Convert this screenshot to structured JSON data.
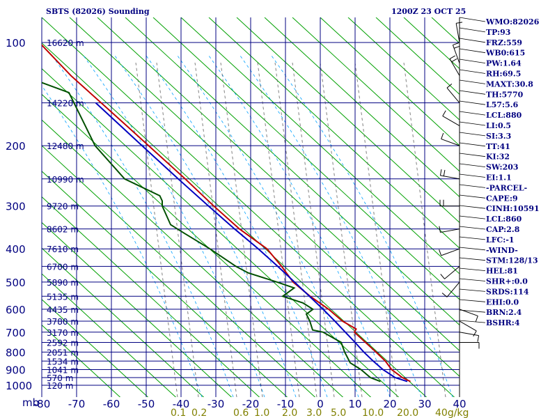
{
  "chart_data": {
    "type": "skew-t sounding",
    "title_left": "SBTS (82026) Sounding",
    "title_right": "1200Z 23 OCT 25",
    "pressure_axis_label": "mb",
    "temperature_unit": "C",
    "mixing_ratio_unit": "g/kg",
    "pressure_levels": [
      100,
      200,
      300,
      400,
      500,
      600,
      700,
      800,
      900,
      1000
    ],
    "temperature_ticks": [
      -80,
      -70,
      -60,
      -50,
      -40,
      -30,
      -20,
      -10,
      0,
      10,
      20,
      30,
      40
    ],
    "temperature_tick_labels": [
      "-80",
      "-70",
      "-60",
      "-50",
      "-40",
      "-30",
      "-20",
      "-10",
      "0",
      "10",
      "20",
      "30",
      "40"
    ],
    "mixing_ratio_labels": [
      {
        "value": 0.1,
        "label": "0.1"
      },
      {
        "value": 0.2,
        "label": "0.2"
      },
      {
        "value": 0.6,
        "label": "0.6"
      },
      {
        "value": 1.0,
        "label": "1.0"
      },
      {
        "value": 2.0,
        "label": "2.0"
      },
      {
        "value": 3.0,
        "label": "3.0"
      },
      {
        "value": 5.0,
        "label": "5.0"
      },
      {
        "value": 10.0,
        "label": "10.0"
      },
      {
        "value": 20.0,
        "label": "20.0"
      },
      {
        "value": 40.0,
        "label": "40g/kg"
      }
    ],
    "height_labels": [
      {
        "p": 100,
        "label": "16620 m"
      },
      {
        "p": 150,
        "label": "14220 m"
      },
      {
        "p": 200,
        "label": "12480 m"
      },
      {
        "p": 250,
        "label": "10990 m"
      },
      {
        "p": 300,
        "label": "9720 m"
      },
      {
        "p": 350,
        "label": "8602 m"
      },
      {
        "p": 400,
        "label": "7610 m"
      },
      {
        "p": 450,
        "label": "6700 m"
      },
      {
        "p": 500,
        "label": "5890 m"
      },
      {
        "p": 550,
        "label": "5135 m"
      },
      {
        "p": 600,
        "label": "4435 m"
      },
      {
        "p": 650,
        "label": "3780 m"
      },
      {
        "p": 700,
        "label": "3170 m"
      },
      {
        "p": 750,
        "label": "2592 m"
      },
      {
        "p": 800,
        "label": "2051 m"
      },
      {
        "p": 850,
        "label": "1534 m"
      },
      {
        "p": 900,
        "label": "1041 m"
      },
      {
        "p": 950,
        "label": "570 m"
      },
      {
        "p": 1000,
        "label": "120 m"
      }
    ],
    "series": [
      {
        "name": "temperature",
        "color": "#c00000",
        "points": [
          [
            100,
            -80.7
          ],
          [
            125,
            -71.6
          ],
          [
            175,
            -55.6
          ],
          [
            250,
            -38.8
          ],
          [
            300,
            -30.6
          ],
          [
            350,
            -23.2
          ],
          [
            400,
            -15.3
          ],
          [
            450,
            -11.1
          ],
          [
            500,
            -7.8
          ],
          [
            550,
            -2.9
          ],
          [
            600,
            2.4
          ],
          [
            650,
            6.4
          ],
          [
            685,
            10.3
          ],
          [
            700,
            9.8
          ],
          [
            800,
            16.0
          ],
          [
            850,
            18.7
          ],
          [
            900,
            20.5
          ],
          [
            950,
            23.6
          ],
          [
            975,
            25.9
          ]
        ]
      },
      {
        "name": "parcel",
        "color": "#0000c0",
        "points": [
          [
            150,
            -64.5
          ],
          [
            200,
            -51.2
          ],
          [
            250,
            -40.8
          ],
          [
            300,
            -32.1
          ],
          [
            350,
            -24.6
          ],
          [
            400,
            -17.8
          ],
          [
            450,
            -12.2
          ],
          [
            500,
            -7.4
          ],
          [
            550,
            -3.1
          ],
          [
            600,
            0.8
          ],
          [
            650,
            4.2
          ],
          [
            700,
            7.2
          ],
          [
            750,
            10.0
          ],
          [
            800,
            12.5
          ],
          [
            850,
            15.2
          ],
          [
            900,
            18.0
          ],
          [
            950,
            21.5
          ],
          [
            975,
            25.0
          ]
        ]
      },
      {
        "name": "dewpoint",
        "color": "#005000",
        "points": [
          [
            130,
            -80.8
          ],
          [
            140,
            -72.2
          ],
          [
            175,
            -67.5
          ],
          [
            200,
            -64.7
          ],
          [
            250,
            -56.2
          ],
          [
            280,
            -46.1
          ],
          [
            290,
            -45.4
          ],
          [
            300,
            -45.4
          ],
          [
            340,
            -43.0
          ],
          [
            360,
            -39.1
          ],
          [
            400,
            -31.7
          ],
          [
            450,
            -24.2
          ],
          [
            470,
            -20.7
          ],
          [
            500,
            -12.4
          ],
          [
            520,
            -7.5
          ],
          [
            550,
            -10.8
          ],
          [
            575,
            -5.0
          ],
          [
            600,
            -2.1
          ],
          [
            620,
            -4.0
          ],
          [
            650,
            -3.0
          ],
          [
            690,
            -2.2
          ],
          [
            700,
            0.8
          ],
          [
            750,
            6.0
          ],
          [
            800,
            7.0
          ],
          [
            860,
            8.6
          ],
          [
            900,
            11.7
          ],
          [
            950,
            14.4
          ],
          [
            975,
            17.3
          ]
        ]
      }
    ],
    "wind_barbs": [
      {
        "p": 100,
        "dir_deg": 350,
        "speed_kt": 10
      },
      {
        "p": 115,
        "dir_deg": 340,
        "speed_kt": 15
      },
      {
        "p": 125,
        "dir_deg": 330,
        "speed_kt": 15
      },
      {
        "p": 150,
        "dir_deg": 320,
        "speed_kt": 10
      },
      {
        "p": 175,
        "dir_deg": 300,
        "speed_kt": 10
      },
      {
        "p": 200,
        "dir_deg": 290,
        "speed_kt": 10
      },
      {
        "p": 250,
        "dir_deg": 280,
        "speed_kt": 20
      },
      {
        "p": 300,
        "dir_deg": 270,
        "speed_kt": 15
      },
      {
        "p": 350,
        "dir_deg": 260,
        "speed_kt": 5
      },
      {
        "p": 400,
        "dir_deg": 250,
        "speed_kt": 5
      },
      {
        "p": 450,
        "dir_deg": 230,
        "speed_kt": 5
      },
      {
        "p": 500,
        "dir_deg": 220,
        "speed_kt": 5
      },
      {
        "p": 600,
        "dir_deg": 110,
        "speed_kt": 10
      },
      {
        "p": 650,
        "dir_deg": 120,
        "speed_kt": 10
      },
      {
        "p": 700,
        "dir_deg": 100,
        "speed_kt": 10
      },
      {
        "p": 750,
        "dir_deg": 90,
        "speed_kt": 10
      }
    ],
    "indices": [
      "WMO:82026",
      "TP:93",
      "FRZ:559",
      "WB0:615",
      "PW:1.64",
      "RH:69.5",
      "MAXT:30.8",
      "TH:5770",
      "L57:5.6",
      "LCL:880",
      "LI:0.5",
      "SI:3.3",
      "TT:41",
      "KI:32",
      "SW:203",
      "EI:1.1",
      "-PARCEL-",
      "CAPE:9",
      "CINH:10591",
      "LCL:860",
      "CAP:2.8",
      "LFC:-1",
      "-WIND-",
      "STM:128/13",
      "HEL:81",
      "SHR+:0.0",
      "SRDS:114",
      "EHI:0.0",
      "BRN:2.4",
      "BSHR:4"
    ],
    "colors": {
      "isobars": "#000080",
      "isotherms": "#000080",
      "dry_adiabats": "#00a000",
      "moist_adiabats": "#00a0ff",
      "mixing_ratio": "#606060"
    }
  }
}
